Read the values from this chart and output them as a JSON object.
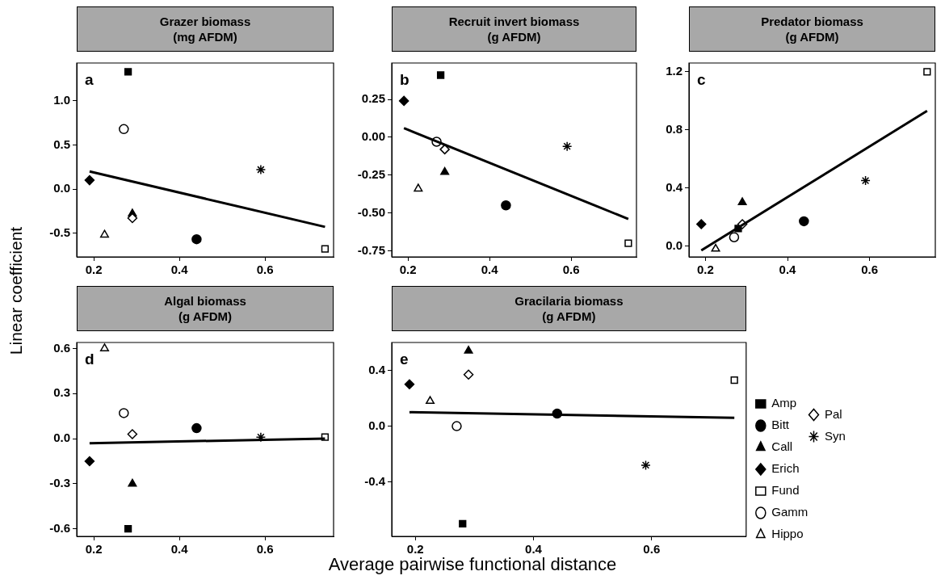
{
  "chart_data": [
    {
      "type": "scatter",
      "title": "Grazer biomass\n(mg AFDM)",
      "ylabel": "Linear coefficient",
      "annotations": [
        "a"
      ],
      "xlim": [
        0.16,
        0.76
      ],
      "xticks": [
        0.2,
        0.4,
        0.6
      ],
      "ylim": [
        -0.77,
        1.43
      ],
      "yticks": [
        {
          "value": -0.5,
          "label": "-0.5"
        },
        {
          "value": 0,
          "label": "0.0"
        },
        {
          "value": 0.5,
          "label": "0.5"
        },
        {
          "value": 1,
          "label": "1.0"
        }
      ],
      "grid": false,
      "series": [
        {
          "color": "#000000",
          "marker": "square",
          "x": [
            0.28
          ],
          "values": [
            1.33
          ]
        },
        {
          "color": "#000000",
          "marker": "circle",
          "x": [
            0.44
          ],
          "values": [
            -0.57
          ]
        },
        {
          "color": "#000000",
          "marker": "triangle",
          "x": [
            0.29
          ],
          "values": [
            -0.28
          ]
        },
        {
          "color": "#000000",
          "marker": "diamond",
          "x": [
            0.19
          ],
          "values": [
            0.1
          ]
        },
        {
          "color": "#ffffff",
          "marker": "square",
          "x": [
            0.74
          ],
          "values": [
            -0.68
          ]
        },
        {
          "color": "#ffffff",
          "marker": "circle",
          "x": [
            0.27
          ],
          "values": [
            0.68
          ]
        },
        {
          "color": "#ffffff",
          "marker": "triangle",
          "x": [
            0.225
          ],
          "values": [
            -0.52
          ]
        },
        {
          "color": "#ffffff",
          "marker": "diamond",
          "x": [
            0.29
          ],
          "values": [
            -0.33
          ]
        },
        {
          "color": "#000000",
          "marker": "cross",
          "x": [
            0.59
          ],
          "values": [
            0.22
          ]
        },
        {
          "type": "line",
          "color": "#000000",
          "marker": "none",
          "x": [
            0.19,
            0.74
          ],
          "values": [
            0.2,
            -0.43
          ]
        }
      ]
    },
    {
      "type": "scatter",
      "title": "Recruit invert biomass\n(g AFDM)",
      "annotations": [
        "b"
      ],
      "xlim": [
        0.16,
        0.76
      ],
      "xticks": [
        0.2,
        0.4,
        0.6
      ],
      "ylim": [
        -0.79,
        0.49
      ],
      "yticks": [
        {
          "value": -0.75,
          "label": "-0.75"
        },
        {
          "value": -0.5,
          "label": "-0.50"
        },
        {
          "value": -0.25,
          "label": "-0.25"
        },
        {
          "value": 0,
          "label": "0.00"
        },
        {
          "value": 0.25,
          "label": "0.25"
        }
      ],
      "grid": false,
      "series": [
        {
          "color": "#000000",
          "marker": "square",
          "x": [
            0.28
          ],
          "values": [
            0.41
          ]
        },
        {
          "color": "#000000",
          "marker": "circle",
          "x": [
            0.44
          ],
          "values": [
            -0.45
          ]
        },
        {
          "color": "#000000",
          "marker": "triangle",
          "x": [
            0.29
          ],
          "values": [
            -0.23
          ]
        },
        {
          "color": "#000000",
          "marker": "diamond",
          "x": [
            0.19
          ],
          "values": [
            0.24
          ]
        },
        {
          "color": "#ffffff",
          "marker": "square",
          "x": [
            0.74
          ],
          "values": [
            -0.7
          ]
        },
        {
          "color": "#ffffff",
          "marker": "circle",
          "x": [
            0.27
          ],
          "values": [
            -0.03
          ]
        },
        {
          "color": "#ffffff",
          "marker": "triangle",
          "x": [
            0.225
          ],
          "values": [
            -0.34
          ]
        },
        {
          "color": "#ffffff",
          "marker": "diamond",
          "x": [
            0.29
          ],
          "values": [
            -0.08
          ]
        },
        {
          "color": "#000000",
          "marker": "cross",
          "x": [
            0.59
          ],
          "values": [
            -0.06
          ]
        },
        {
          "type": "line",
          "color": "#000000",
          "marker": "none",
          "x": [
            0.19,
            0.74
          ],
          "values": [
            0.06,
            -0.54
          ]
        }
      ]
    },
    {
      "type": "scatter",
      "title": "Predator biomass\n(g AFDM)",
      "annotations": [
        "c"
      ],
      "xlim": [
        0.16,
        0.76
      ],
      "xticks": [
        0.2,
        0.4,
        0.6
      ],
      "ylim": [
        -0.075,
        1.26
      ],
      "yticks": [
        {
          "value": 0,
          "label": "0.0"
        },
        {
          "value": 0.4,
          "label": "0.4"
        },
        {
          "value": 0.8,
          "label": "0.8"
        },
        {
          "value": 1.2,
          "label": "1.2"
        }
      ],
      "grid": false,
      "series": [
        {
          "color": "#000000",
          "marker": "square",
          "x": [
            0.28
          ],
          "values": [
            0.12
          ]
        },
        {
          "color": "#000000",
          "marker": "circle",
          "x": [
            0.44
          ],
          "values": [
            0.17
          ]
        },
        {
          "color": "#000000",
          "marker": "triangle",
          "x": [
            0.29
          ],
          "values": [
            0.3
          ]
        },
        {
          "color": "#000000",
          "marker": "diamond",
          "x": [
            0.19
          ],
          "values": [
            0.15
          ]
        },
        {
          "color": "#ffffff",
          "marker": "square",
          "x": [
            0.74
          ],
          "values": [
            1.2
          ]
        },
        {
          "color": "#ffffff",
          "marker": "circle",
          "x": [
            0.27
          ],
          "values": [
            0.06
          ]
        },
        {
          "color": "#ffffff",
          "marker": "triangle",
          "x": [
            0.225
          ],
          "values": [
            -0.02
          ]
        },
        {
          "color": "#ffffff",
          "marker": "diamond",
          "x": [
            0.29
          ],
          "values": [
            0.15
          ]
        },
        {
          "color": "#000000",
          "marker": "cross",
          "x": [
            0.59
          ],
          "values": [
            0.45
          ]
        },
        {
          "type": "line",
          "color": "#000000",
          "marker": "none",
          "x": [
            0.19,
            0.74
          ],
          "values": [
            -0.03,
            0.93
          ]
        }
      ]
    },
    {
      "type": "scatter",
      "title": "Algal biomass\n(g AFDM)",
      "annotations": [
        "d"
      ],
      "xlim": [
        0.16,
        0.76
      ],
      "xticks": [
        0.2,
        0.4,
        0.6
      ],
      "ylim": [
        -0.65,
        0.64
      ],
      "yticks": [
        {
          "value": -0.6,
          "label": "-0.6"
        },
        {
          "value": -0.3,
          "label": "-0.3"
        },
        {
          "value": 0,
          "label": "0.0"
        },
        {
          "value": 0.3,
          "label": "0.3"
        },
        {
          "value": 0.6,
          "label": "0.6"
        }
      ],
      "grid": false,
      "series": [
        {
          "color": "#000000",
          "marker": "square",
          "x": [
            0.28
          ],
          "values": [
            -0.6
          ]
        },
        {
          "color": "#000000",
          "marker": "circle",
          "x": [
            0.44
          ],
          "values": [
            0.07
          ]
        },
        {
          "color": "#000000",
          "marker": "triangle",
          "x": [
            0.29
          ],
          "values": [
            -0.3
          ]
        },
        {
          "color": "#000000",
          "marker": "diamond",
          "x": [
            0.19
          ],
          "values": [
            -0.15
          ]
        },
        {
          "color": "#ffffff",
          "marker": "square",
          "x": [
            0.74
          ],
          "values": [
            0.01
          ]
        },
        {
          "color": "#ffffff",
          "marker": "circle",
          "x": [
            0.27
          ],
          "values": [
            0.17
          ]
        },
        {
          "color": "#ffffff",
          "marker": "triangle",
          "x": [
            0.225
          ],
          "values": [
            0.6
          ]
        },
        {
          "color": "#ffffff",
          "marker": "diamond",
          "x": [
            0.29
          ],
          "values": [
            0.03
          ]
        },
        {
          "color": "#000000",
          "marker": "cross",
          "x": [
            0.59
          ],
          "values": [
            0.01
          ]
        },
        {
          "type": "line",
          "color": "#000000",
          "marker": "none",
          "x": [
            0.19,
            0.74
          ],
          "values": [
            -0.03,
            0.0
          ]
        }
      ]
    },
    {
      "type": "scatter",
      "title": "Gracilaria biomass\n(g AFDM)",
      "xlabel": "Average pairwise functional distance",
      "annotations": [
        "e"
      ],
      "legend": "right",
      "xlim": [
        0.16,
        0.76
      ],
      "xticks": [
        0.2,
        0.4,
        0.6
      ],
      "ylim": [
        -0.79,
        0.6
      ],
      "yticks": [
        {
          "value": -0.4,
          "label": "-0.4"
        },
        {
          "value": 0,
          "label": "0.0"
        },
        {
          "value": 0.4,
          "label": "0.4"
        }
      ],
      "grid": false,
      "series": [
        {
          "name": "Amp",
          "color": "#000000",
          "marker": "square",
          "x": [
            0.28
          ],
          "values": [
            -0.7
          ]
        },
        {
          "name": "Bitt",
          "color": "#000000",
          "marker": "circle",
          "x": [
            0.44
          ],
          "values": [
            0.09
          ]
        },
        {
          "name": "Call",
          "color": "#000000",
          "marker": "triangle",
          "x": [
            0.29
          ],
          "values": [
            0.54
          ]
        },
        {
          "name": "Erich",
          "color": "#000000",
          "marker": "diamond",
          "x": [
            0.19
          ],
          "values": [
            0.3
          ]
        },
        {
          "name": "Fund",
          "color": "#ffffff",
          "marker": "square",
          "x": [
            0.74
          ],
          "values": [
            0.33
          ]
        },
        {
          "name": "Gamm",
          "color": "#ffffff",
          "marker": "circle",
          "x": [
            0.27
          ],
          "values": [
            0.0
          ]
        },
        {
          "name": "Hippo",
          "color": "#ffffff",
          "marker": "triangle",
          "x": [
            0.225
          ],
          "values": [
            0.18
          ]
        },
        {
          "name": "Pal",
          "color": "#ffffff",
          "marker": "diamond",
          "x": [
            0.29
          ],
          "values": [
            0.37
          ]
        },
        {
          "name": "Syn",
          "color": "#000000",
          "marker": "cross",
          "x": [
            0.59
          ],
          "values": [
            -0.28
          ]
        },
        {
          "type": "line",
          "color": "#000000",
          "marker": "none",
          "x": [
            0.19,
            0.74
          ],
          "values": [
            0.1,
            0.06
          ]
        }
      ]
    }
  ]
}
